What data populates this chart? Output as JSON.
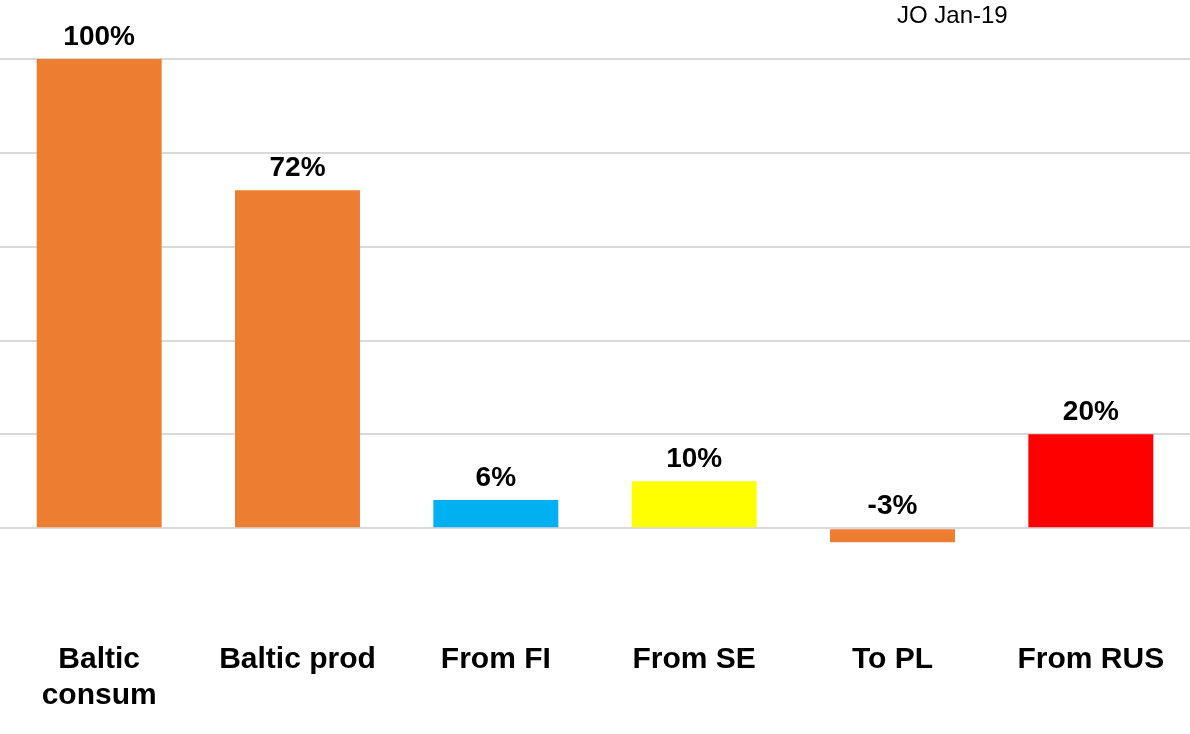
{
  "chart_data": {
    "type": "bar",
    "categories": [
      "Baltic consum",
      "Baltic prod",
      "From FI",
      "From SE",
      "To PL",
      "From RUS"
    ],
    "values": [
      100,
      72,
      6,
      10,
      -3,
      20
    ],
    "colors": [
      "#ed7d31",
      "#ed7d31",
      "#00b0f0",
      "#ffff00",
      "#ed7d31",
      "#ff0000"
    ],
    "yticks": [
      {
        "value": 0,
        "label": null
      },
      {
        "value": 20,
        "label": null
      },
      {
        "value": 40,
        "label": null
      },
      {
        "value": 60,
        "label": null
      },
      {
        "value": 80,
        "label": null
      },
      {
        "value": 100,
        "label": null
      }
    ],
    "tick_labels": "x",
    "grid": "y",
    "legend": false,
    "value_labels": [
      "100%",
      "72%",
      "6%",
      "10%",
      "-3%",
      "20%"
    ],
    "annotations": [
      "JO Jan-19"
    ]
  }
}
